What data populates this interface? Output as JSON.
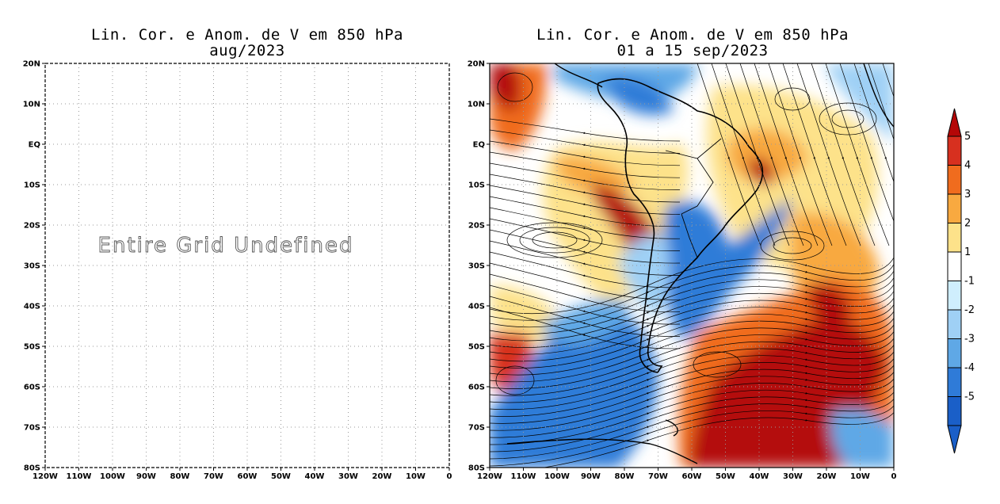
{
  "panels": [
    {
      "title_line1": "Lin. Cor. e Anom. de V em 850 hPa",
      "title_line2": "aug/2023",
      "message": "Entire Grid Undefined"
    },
    {
      "title_line1": "Lin. Cor. e Anom. de V em 850 hPa",
      "title_line2": "01 a 15 sep/2023"
    }
  ],
  "chart_data": [
    {
      "type": "heatmap",
      "title": "Lin. Cor. e Anom. de V em 850 hPa aug/2023",
      "xlim": [
        -120,
        0
      ],
      "ylim": [
        -80,
        20
      ],
      "x_ticks": [
        "120W",
        "110W",
        "100W",
        "90W",
        "80W",
        "70W",
        "60W",
        "50W",
        "40W",
        "30W",
        "20W",
        "10W",
        "0"
      ],
      "y_ticks": [
        "20N",
        "10N",
        "EQ",
        "10S",
        "20S",
        "30S",
        "40S",
        "50S",
        "60S",
        "70S",
        "80S"
      ],
      "grid": true,
      "note": "Entire Grid Undefined"
    },
    {
      "type": "heatmap",
      "title": "Lin. Cor. e Anom. de V em 850 hPa 01 a 15 sep/2023",
      "xlim": [
        -120,
        0
      ],
      "ylim": [
        -80,
        20
      ],
      "x_ticks": [
        "120W",
        "110W",
        "100W",
        "90W",
        "80W",
        "70W",
        "60W",
        "50W",
        "40W",
        "30W",
        "20W",
        "10W",
        "0"
      ],
      "y_ticks": [
        "20N",
        "10N",
        "EQ",
        "10S",
        "20S",
        "30S",
        "40S",
        "50S",
        "60S",
        "70S",
        "80S"
      ],
      "grid": true,
      "colorbar": {
        "labels": [
          "5",
          "4",
          "3",
          "2",
          "1",
          "-1",
          "-2",
          "-3",
          "-4",
          "-5"
        ],
        "colors": [
          "#a50f0f",
          "#d7301f",
          "#f06c1e",
          "#f8a940",
          "#fde28a",
          "#ffffff",
          "#cfeefd",
          "#9fd0f5",
          "#5fa8e6",
          "#2f7bd8",
          "#1a5fc8",
          "#b40707"
        ]
      },
      "anomaly_regions": [
        {
          "lon": -76,
          "lat": -20,
          "value": 5
        },
        {
          "lon": -30,
          "lat": -62,
          "value": 5
        },
        {
          "lon": -20,
          "lat": -45,
          "value": 4
        },
        {
          "lon": -115,
          "lat": 12,
          "value": 4
        },
        {
          "lon": -40,
          "lat": 0,
          "value": 3
        },
        {
          "lon": -95,
          "lat": -55,
          "value": -5
        },
        {
          "lon": -55,
          "lat": -25,
          "value": -4
        },
        {
          "lon": -80,
          "lat": -38,
          "value": -3
        },
        {
          "lon": -80,
          "lat": 18,
          "value": -3
        }
      ]
    }
  ]
}
